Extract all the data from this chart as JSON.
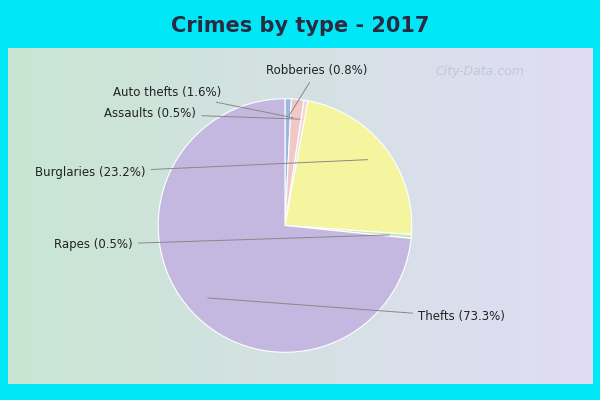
{
  "title": "Crimes by type - 2017",
  "values": [
    73.3,
    23.2,
    1.6,
    0.8,
    0.5,
    0.5
  ],
  "colors": [
    "#c5b8e0",
    "#f5f5a0",
    "#f0c8c8",
    "#9ab8e0",
    "#c8e8c0",
    "#c5b8e0"
  ],
  "label_texts": [
    "Thefts (73.3%)",
    "Burglaries (23.2%)",
    "Auto thefts (1.6%)",
    "Robberies (0.8%)",
    "Assaults (0.5%)",
    "Rapes (0.5%)"
  ],
  "slice_order": [
    "Thefts",
    "Rapes",
    "Burglaries",
    "Assaults",
    "Auto thefts",
    "Robberies"
  ],
  "bg_cyan": "#00e8f8",
  "title_color": "#2a2a40",
  "title_fontsize": 15,
  "label_fontsize": 8.5,
  "watermark": "City-Data.com"
}
